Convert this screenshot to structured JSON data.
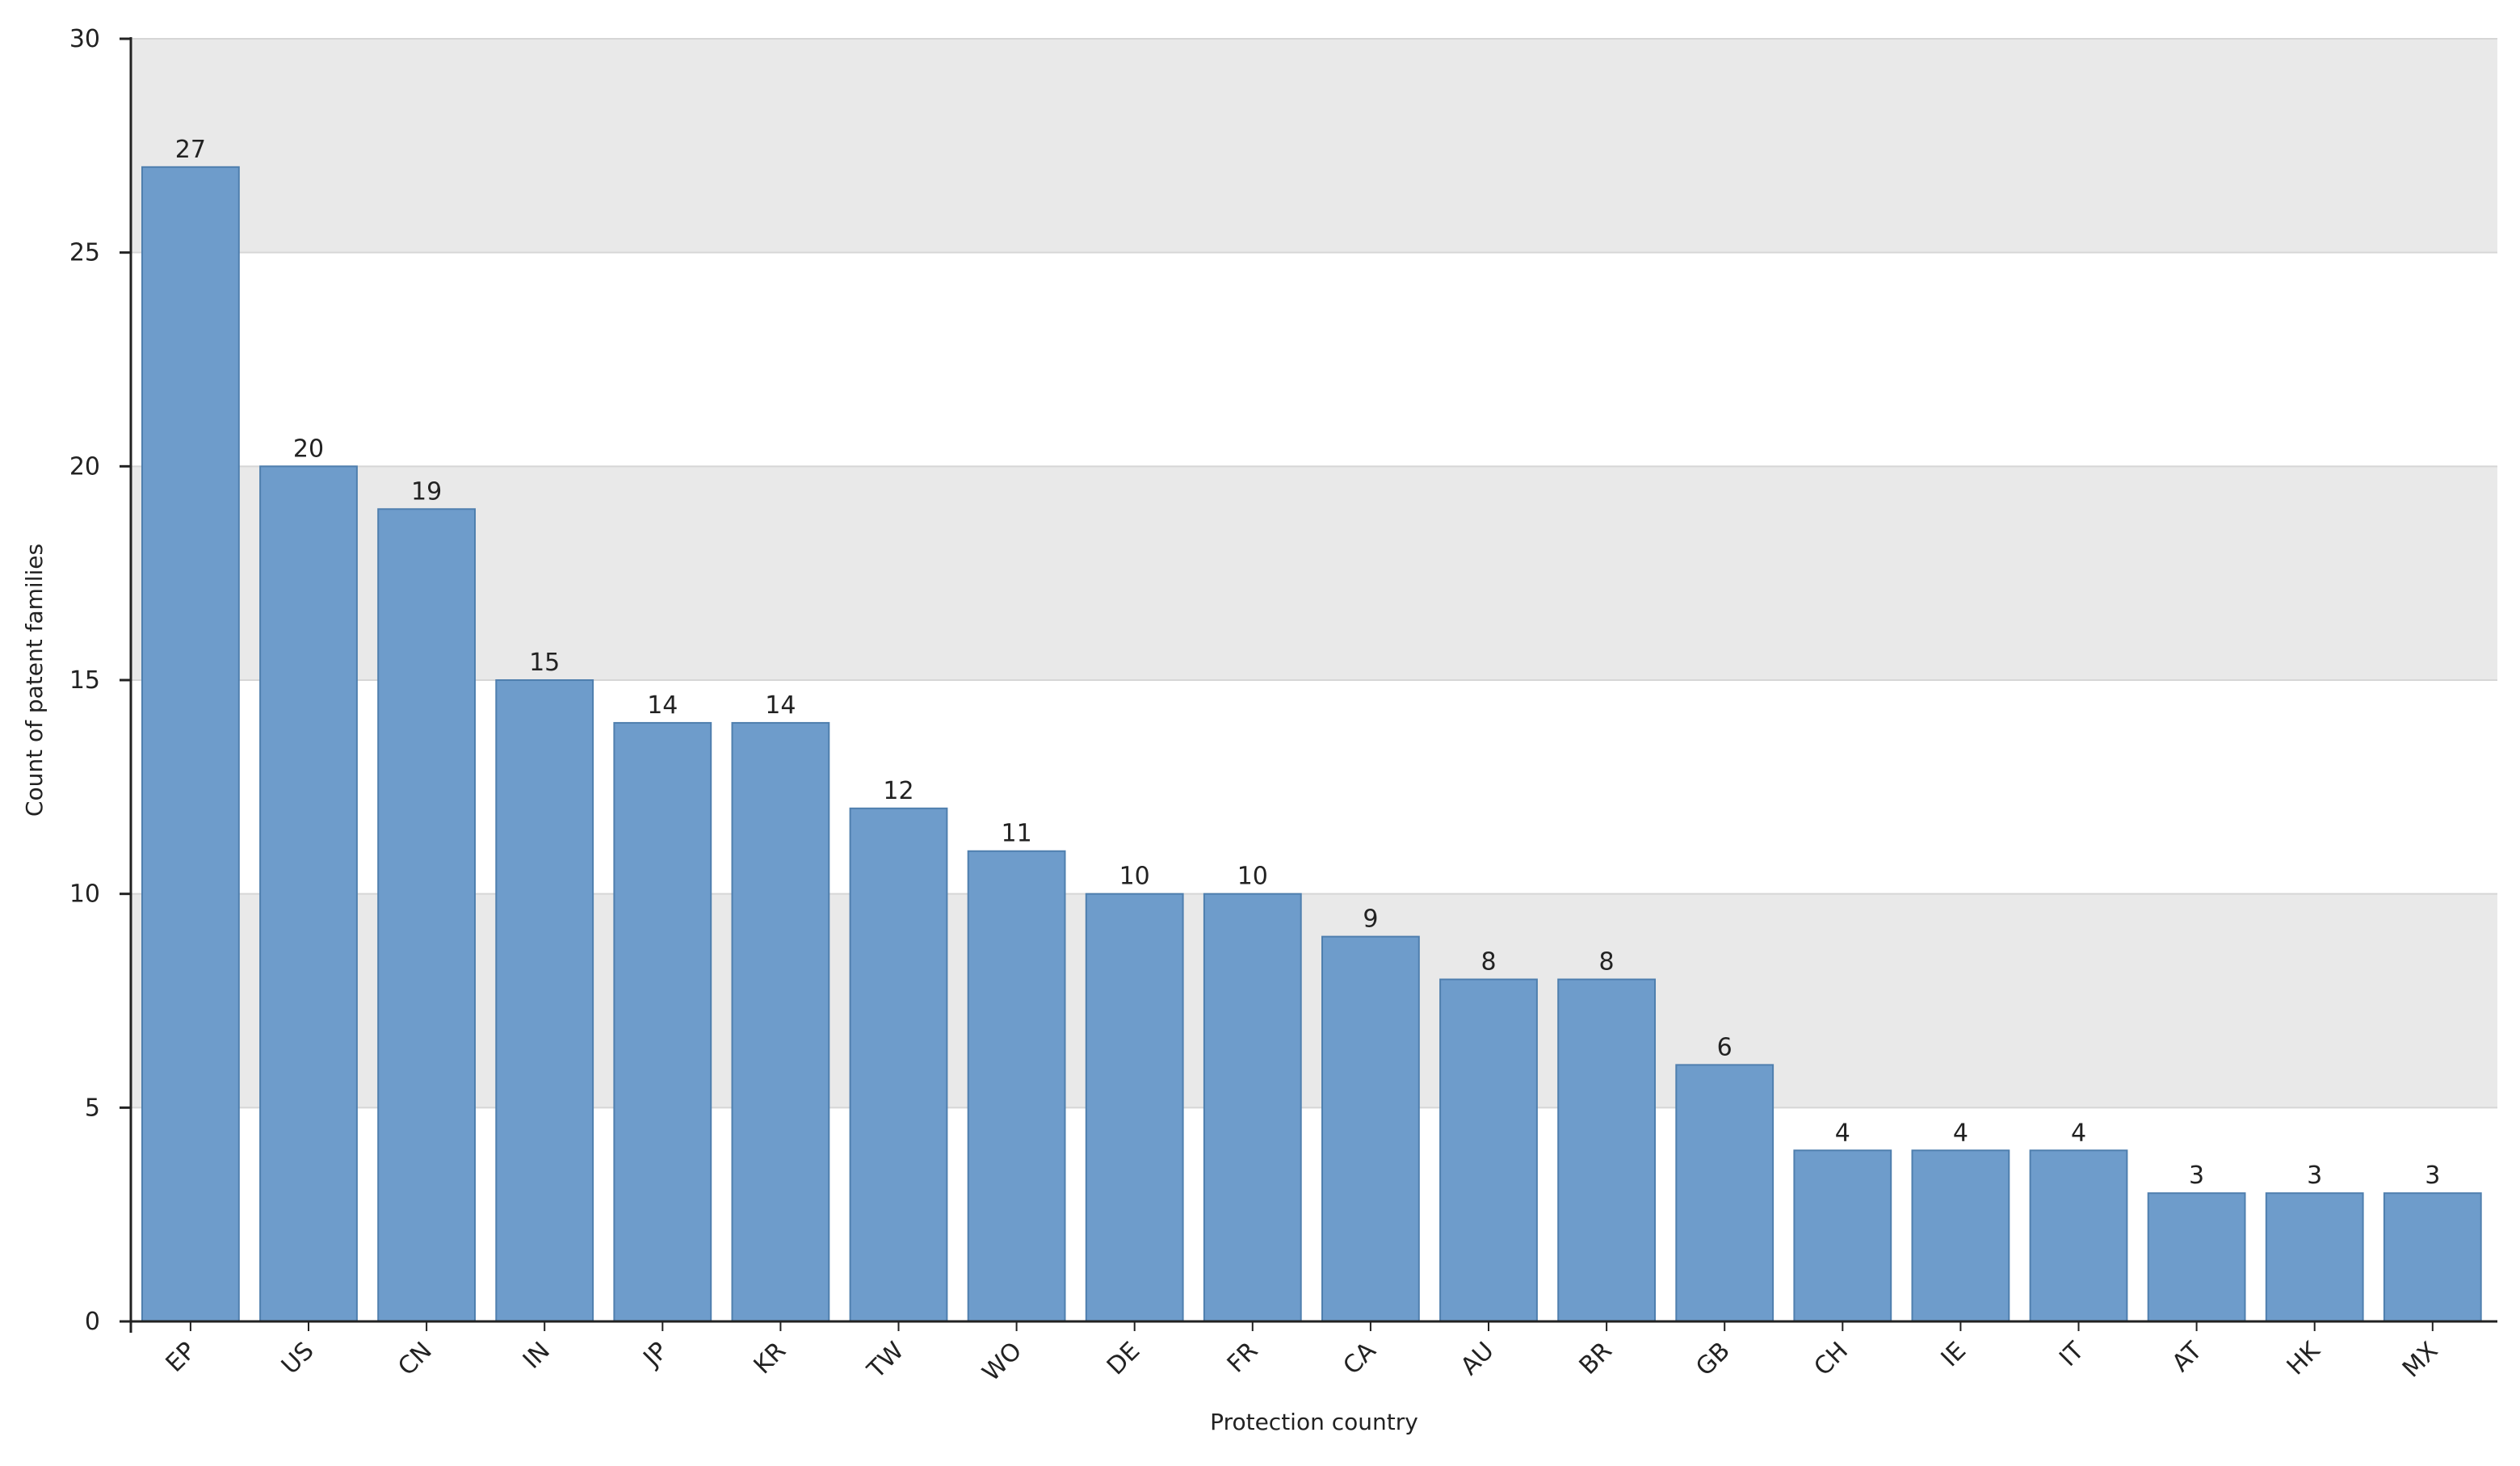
{
  "chart_data": {
    "type": "bar",
    "title": "",
    "xlabel": "Protection country",
    "ylabel": "Count of patent families",
    "categories": [
      "EP",
      "US",
      "CN",
      "IN",
      "JP",
      "KR",
      "TW",
      "WO",
      "DE",
      "FR",
      "CA",
      "AU",
      "BR",
      "GB",
      "CH",
      "IE",
      "IT",
      "AT",
      "HK",
      "MX"
    ],
    "values": [
      27,
      20,
      19,
      15,
      14,
      14,
      12,
      11,
      10,
      10,
      9,
      8,
      8,
      6,
      4,
      4,
      4,
      3,
      3,
      3
    ],
    "ylim": [
      0,
      30
    ],
    "yticks": [
      0,
      5,
      10,
      15,
      20,
      25,
      30
    ],
    "grid": true,
    "legend": "none",
    "bar_color": "#6e9ccb",
    "bar_border_color": "#4f7fae",
    "band_color": "#e9e9e9"
  }
}
